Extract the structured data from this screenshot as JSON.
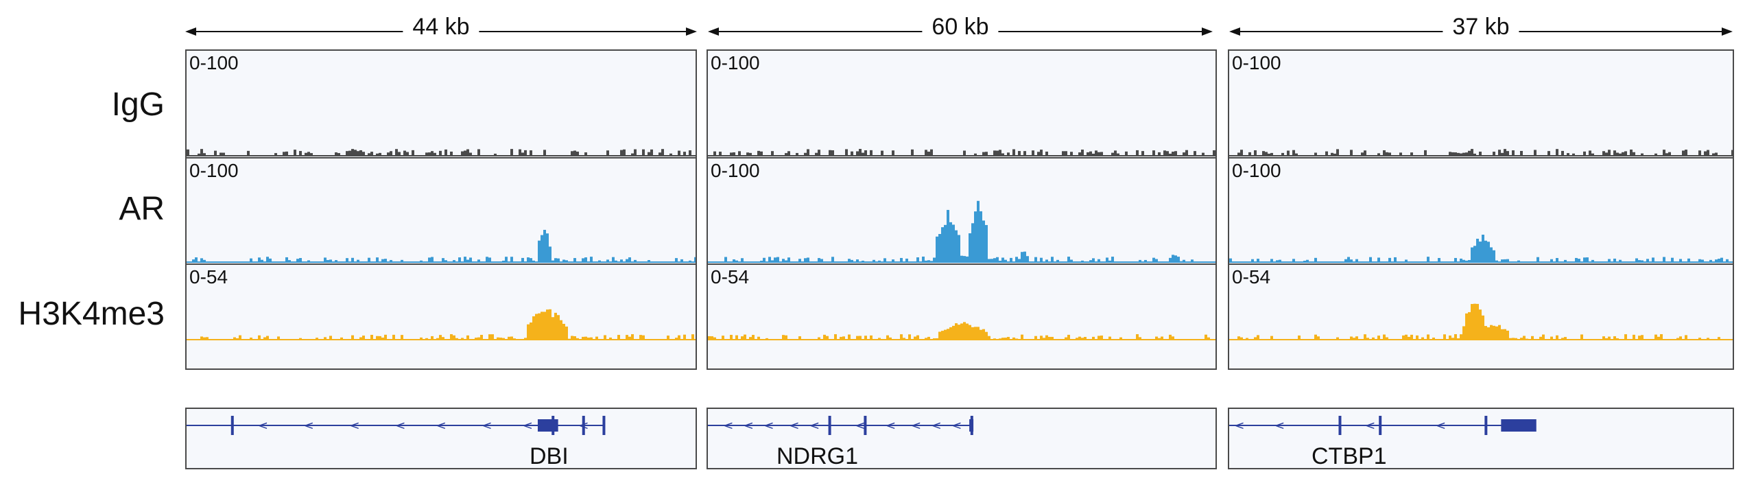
{
  "rows": [
    {
      "label": "IgG",
      "color": "#4a4a4a"
    },
    {
      "label": "AR",
      "color": "#3a9ad4"
    },
    {
      "label": "H3K4me3",
      "color": "#f5b21b"
    }
  ],
  "loci": [
    {
      "span_label": "44 kb",
      "gene": "DBI",
      "ranges": [
        "0-100",
        "0-100",
        "0-54"
      ],
      "peaks": {
        "IgG": [],
        "AR": [
          {
            "pos": 0.7,
            "height": 0.48,
            "width": 0.012
          }
        ],
        "H3K4me3": [
          {
            "pos": 0.705,
            "height": 0.66,
            "width": 0.04
          }
        ]
      },
      "gene_model": {
        "line": [
          0.0,
          0.82
        ],
        "exons": [
          0.09,
          0.72,
          0.78,
          0.82
        ],
        "block": [
          0.69,
          0.73
        ],
        "arrows": "<",
        "arrow_positions": [
          0.14,
          0.23,
          0.32,
          0.41,
          0.49,
          0.58,
          0.66,
          0.77
        ]
      }
    },
    {
      "span_label": "60 kb",
      "gene": "NDRG1",
      "ranges": [
        "0-100",
        "0-100",
        "0-54"
      ],
      "peaks": {
        "IgG": [],
        "AR": [
          {
            "pos": 0.47,
            "height": 0.66,
            "width": 0.025
          },
          {
            "pos": 0.53,
            "height": 0.82,
            "width": 0.02
          },
          {
            "pos": 0.62,
            "height": 0.18,
            "width": 0.008
          },
          {
            "pos": 0.915,
            "height": 0.12,
            "width": 0.008
          }
        ],
        "H3K4me3": [
          {
            "pos": 0.5,
            "height": 0.36,
            "width": 0.05
          }
        ]
      },
      "gene_model": {
        "line": [
          0.0,
          0.52
        ],
        "exons": [
          0.24,
          0.31,
          0.52
        ],
        "block": [
          0.515,
          0.52
        ],
        "arrows": "<",
        "arrow_positions": [
          0.03,
          0.07,
          0.11,
          0.16,
          0.2,
          0.29,
          0.35,
          0.4,
          0.44,
          0.48
        ]
      }
    },
    {
      "span_label": "37 kb",
      "gene": "CTBP1",
      "ranges": [
        "0-100",
        "0-100",
        "0-54"
      ],
      "peaks": {
        "IgG": [],
        "AR": [
          {
            "pos": 0.5,
            "height": 0.36,
            "width": 0.025
          }
        ],
        "H3K4me3": [
          {
            "pos": 0.485,
            "height": 0.84,
            "width": 0.022
          },
          {
            "pos": 0.525,
            "height": 0.34,
            "width": 0.03
          }
        ]
      },
      "gene_model": {
        "line": [
          0.0,
          0.6
        ],
        "exons": [
          0.22,
          0.3,
          0.51
        ],
        "block": [
          0.54,
          0.61
        ],
        "arrows": "<",
        "arrow_positions": [
          0.01,
          0.09,
          0.27,
          0.41
        ]
      }
    }
  ]
}
